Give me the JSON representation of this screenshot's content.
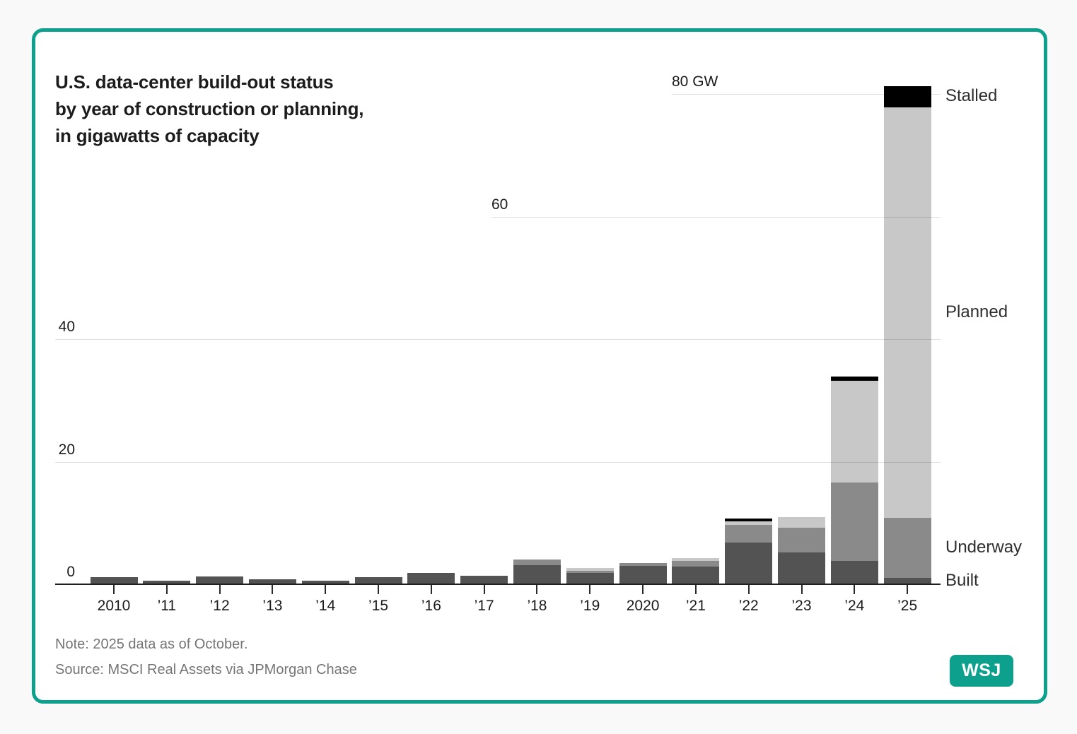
{
  "frame": {
    "accent_color": "#0ca08d",
    "logo_text": "WSJ"
  },
  "title": "U.S. data-center build-out status\nby year of construction or planning,\nin gigawatts of capacity",
  "note": "Note: 2025 data as of October.",
  "source": "Source: MSCI Real Assets via JPMorgan Chase",
  "chart_data": {
    "type": "bar",
    "stacked": true,
    "title": "U.S. data-center build-out status by year of construction or planning, in gigawatts of capacity",
    "unit": "GW",
    "xlabel": "",
    "ylabel": "Gigawatts of capacity",
    "categories": [
      "2010",
      "’11",
      "’12",
      "’13",
      "’14",
      "’15",
      "’16",
      "’17",
      "’18",
      "’19",
      "2020",
      "’21",
      "’22",
      "’23",
      "’24",
      "’25"
    ],
    "series": [
      {
        "name": "Built",
        "color": "#535353",
        "values": [
          1.1,
          0.6,
          1.3,
          0.8,
          0.6,
          1.2,
          1.8,
          1.4,
          3.1,
          1.8,
          3.0,
          2.9,
          6.8,
          5.2,
          3.8,
          1.0
        ]
      },
      {
        "name": "Underway",
        "color": "#8a8a8a",
        "values": [
          0,
          0,
          0,
          0,
          0,
          0,
          0,
          0,
          0.9,
          0.4,
          0.5,
          0.9,
          2.9,
          4.0,
          12.8,
          9.8
        ]
      },
      {
        "name": "Planned",
        "color": "#c8c8c8",
        "values": [
          0,
          0,
          0,
          0,
          0,
          0,
          0,
          0,
          0,
          0.4,
          0,
          0.5,
          0.6,
          1.8,
          16.6,
          67.0
        ]
      },
      {
        "name": "Stalled",
        "color": "#000000",
        "values": [
          0,
          0,
          0,
          0,
          0,
          0,
          0,
          0,
          0,
          0,
          0,
          0,
          0.4,
          0,
          0.7,
          3.5
        ]
      }
    ],
    "y_axis": {
      "ticks": [
        0,
        20,
        40,
        60,
        80
      ],
      "tick_labels": [
        "0",
        "20",
        "40",
        "60",
        "80 GW"
      ],
      "ylim": [
        0,
        82
      ]
    },
    "grid": "horizontal gridlines only; 60 and 80 lines start mid-chart (staircase style)",
    "legend_position": "direct labels at right of last bar",
    "series_labels_right": [
      "Stalled",
      "Planned",
      "Underway",
      "Built"
    ]
  }
}
